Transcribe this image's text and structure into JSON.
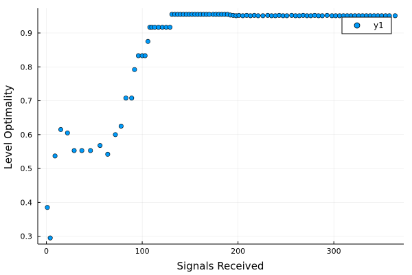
{
  "chart_data": {
    "type": "scatter",
    "xlabel": "Signals Received",
    "ylabel": "Level Optimality",
    "xlim": [
      -9,
      373
    ],
    "ylim": [
      0.277,
      0.973
    ],
    "xticks": [
      0,
      100,
      200,
      300
    ],
    "yticks": [
      0.3,
      0.4,
      0.5,
      0.6,
      0.7,
      0.8,
      0.9
    ],
    "grid": true,
    "legend_position": "top-right",
    "series": [
      {
        "name": "y1",
        "color": "#009af9",
        "x": [
          1,
          4,
          9,
          15,
          22,
          29,
          37,
          46,
          56,
          64,
          72,
          78,
          83,
          89,
          92,
          96,
          100,
          103,
          106,
          108,
          110,
          113,
          117,
          121,
          125,
          129,
          131,
          134,
          137,
          140,
          143,
          146,
          149,
          152,
          155,
          158,
          161,
          164,
          167,
          170,
          174,
          177,
          180,
          183,
          186,
          189,
          192,
          195,
          198,
          201,
          205,
          209,
          213,
          217,
          221,
          226,
          231,
          235,
          239,
          243,
          247,
          251,
          256,
          260,
          264,
          268,
          272,
          276,
          280,
          284,
          288,
          293,
          298,
          302,
          306,
          310,
          314,
          318,
          322,
          326,
          330,
          334,
          338,
          342,
          346,
          350,
          354,
          358,
          364
        ],
        "y": [
          0.385,
          0.295,
          0.537,
          0.615,
          0.605,
          0.553,
          0.553,
          0.553,
          0.568,
          0.542,
          0.6,
          0.625,
          0.708,
          0.708,
          0.792,
          0.833,
          0.833,
          0.833,
          0.875,
          0.917,
          0.917,
          0.917,
          0.917,
          0.917,
          0.917,
          0.917,
          0.955,
          0.955,
          0.955,
          0.955,
          0.955,
          0.955,
          0.955,
          0.955,
          0.955,
          0.955,
          0.955,
          0.955,
          0.955,
          0.955,
          0.955,
          0.955,
          0.955,
          0.955,
          0.955,
          0.955,
          0.953,
          0.952,
          0.951,
          0.952,
          0.951,
          0.952,
          0.951,
          0.952,
          0.951,
          0.951,
          0.952,
          0.951,
          0.951,
          0.952,
          0.951,
          0.951,
          0.952,
          0.951,
          0.951,
          0.952,
          0.951,
          0.951,
          0.952,
          0.951,
          0.951,
          0.952,
          0.951,
          0.951,
          0.951,
          0.951,
          0.951,
          0.951,
          0.951,
          0.951,
          0.951,
          0.951,
          0.951,
          0.951,
          0.951,
          0.951,
          0.951,
          0.951,
          0.951
        ]
      }
    ]
  }
}
